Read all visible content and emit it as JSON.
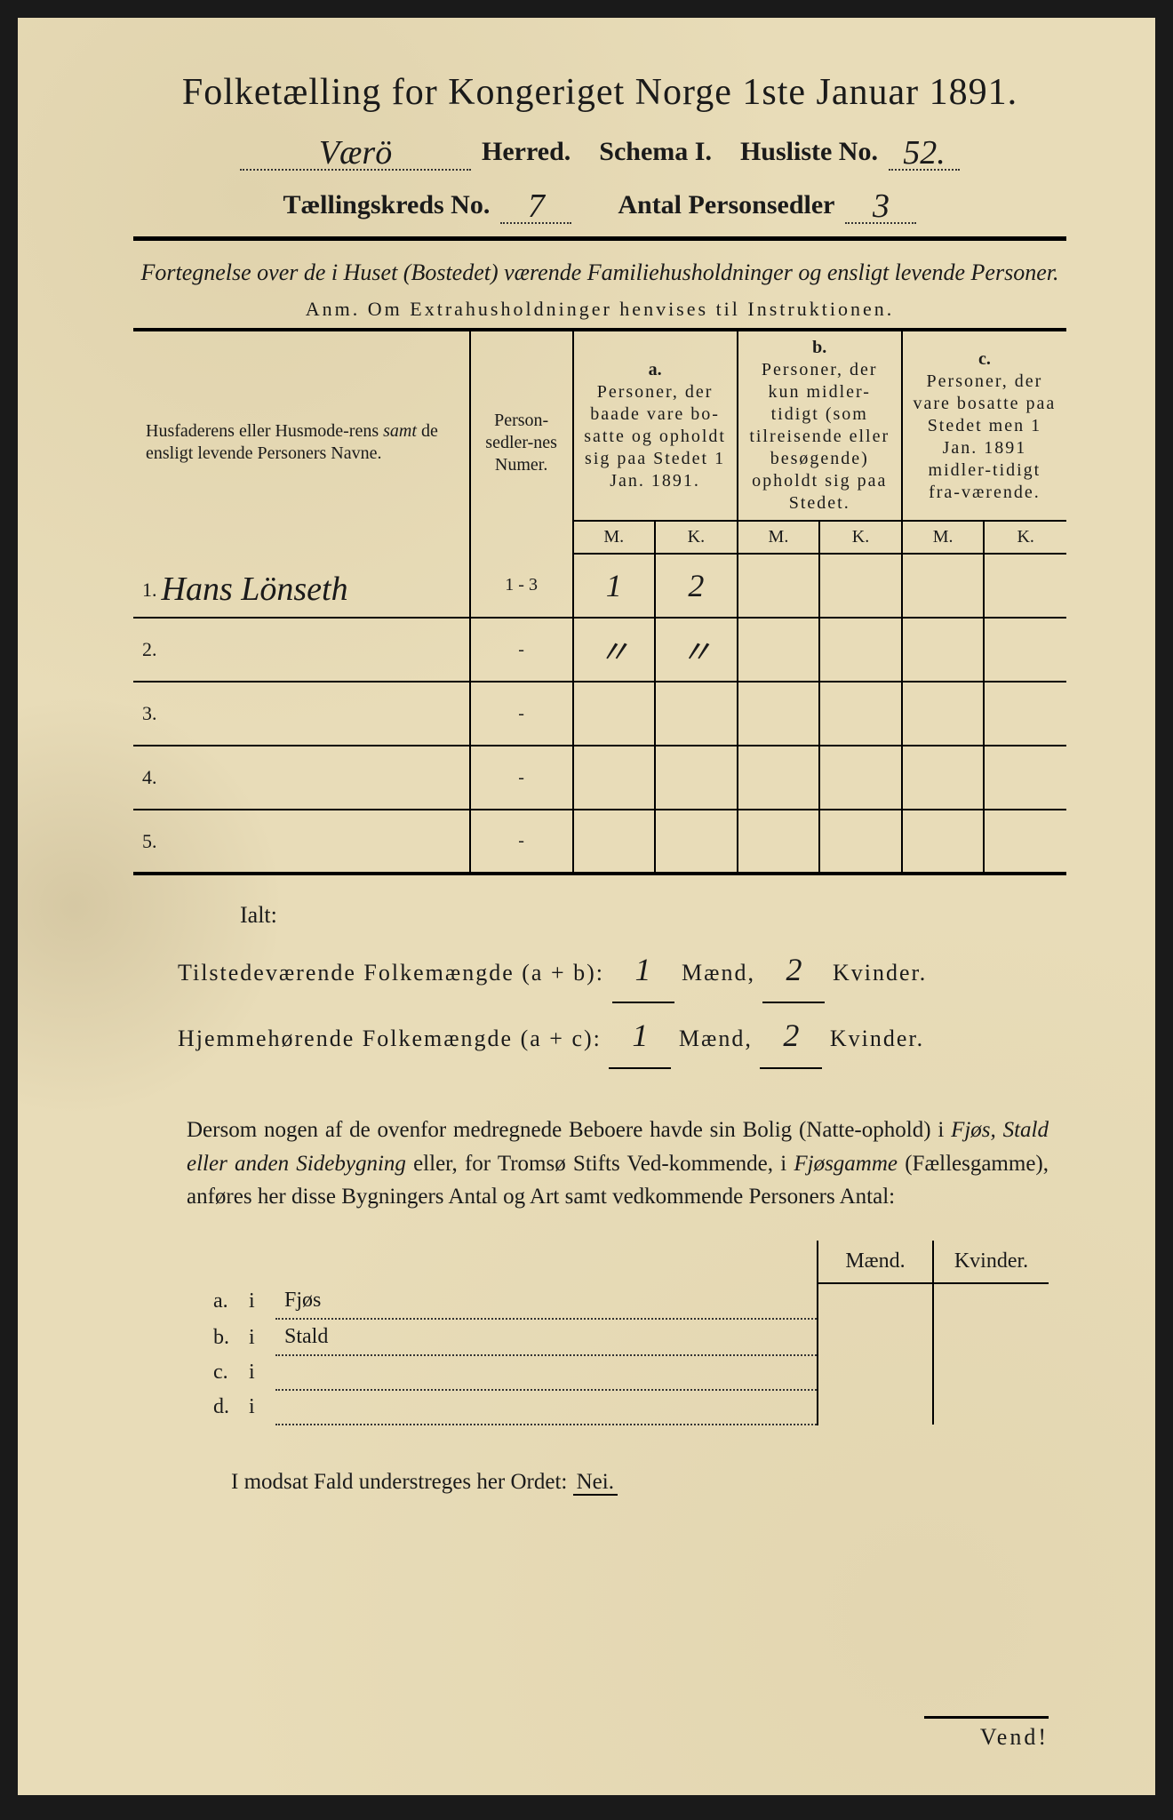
{
  "colors": {
    "paper": "#e8dcb8",
    "ink": "#1a1a1a",
    "frame": "#1a1a1a"
  },
  "title": "Folketælling for Kongeriget Norge 1ste Januar 1891.",
  "header": {
    "herred_value": "Værö",
    "herred_label": "Herred.",
    "schema_label": "Schema I.",
    "husliste_label": "Husliste No.",
    "husliste_value": "52.",
    "kreds_label": "Tællingskreds No.",
    "kreds_value": "7",
    "antal_label": "Antal Personsedler",
    "antal_value": "3"
  },
  "subtitle": "Fortegnelse over de i Huset (Bostedet) værende Familiehusholdninger og ensligt levende Personer.",
  "anm": "Anm.  Om Extrahusholdninger henvises til Instruktionen.",
  "columns": {
    "name": "Husfaderens eller Husmoderens samt de ensligt levende Personers Navne.",
    "numer": "Person-sedler-nes Numer.",
    "a": "Personer, der baade vare bo-satte og opholdt sig paa Stedet 1 Jan. 1891.",
    "b": "Personer, der kun midler-tidigt (som tilreisende eller besøgende) opholdt sig paa Stedet.",
    "c": "Personer, der vare bosatte paa Stedet men 1 Jan. 1891 midler-tidigt fra-værende.",
    "a_lbl": "a.",
    "b_lbl": "b.",
    "c_lbl": "c.",
    "M": "M.",
    "K": "K."
  },
  "rows": [
    {
      "n": "1.",
      "name": "Hans Lönseth",
      "numer": "1 - 3",
      "aM": "1",
      "aK": "2",
      "bM": "",
      "bK": "",
      "cM": "",
      "cK": ""
    },
    {
      "n": "2.",
      "name": "",
      "numer": "-",
      "aM": "〃",
      "aK": "〃",
      "bM": "",
      "bK": "",
      "cM": "",
      "cK": ""
    },
    {
      "n": "3.",
      "name": "",
      "numer": "-",
      "aM": "",
      "aK": "",
      "bM": "",
      "bK": "",
      "cM": "",
      "cK": ""
    },
    {
      "n": "4.",
      "name": "",
      "numer": "-",
      "aM": "",
      "aK": "",
      "bM": "",
      "bK": "",
      "cM": "",
      "cK": ""
    },
    {
      "n": "5.",
      "name": "",
      "numer": "-",
      "aM": "",
      "aK": "",
      "bM": "",
      "bK": "",
      "cM": "",
      "cK": ""
    }
  ],
  "ialt_label": "Ialt:",
  "totals": {
    "line1_label": "Tilstedeværende Folkemængde (a + b):",
    "line2_label": "Hjemmehørende Folkemængde (a + c):",
    "mend_label": "Mænd,",
    "kvinder_label": "Kvinder.",
    "t_m": "1",
    "t_k": "2",
    "h_m": "1",
    "h_k": "2"
  },
  "paragraph": "Dersom nogen af de ovenfor medregnede Beboere havde sin Bolig (Natte-ophold) i Fjøs, Stald eller anden Sidebygning eller, for Tromsø Stifts Ved-kommende, i Fjøsgamme (Fællesgamme), anføres her disse Bygningers Antal og Art samt vedkommende Personers Antal:",
  "buildings": {
    "mend": "Mænd.",
    "kvinder": "Kvinder.",
    "rows": [
      {
        "l": "a.",
        "i": "i",
        "t": "Fjøs"
      },
      {
        "l": "b.",
        "i": "i",
        "t": "Stald"
      },
      {
        "l": "c.",
        "i": "i",
        "t": ""
      },
      {
        "l": "d.",
        "i": "i",
        "t": ""
      }
    ]
  },
  "nei_line": "I modsat Fald understreges her Ordet:",
  "nei_word": "Nei.",
  "vend": "Vend!"
}
